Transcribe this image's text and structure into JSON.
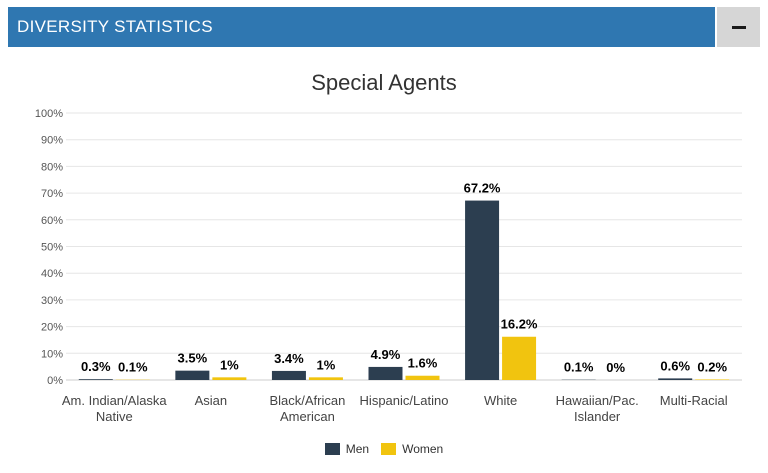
{
  "header": {
    "title": "DIVERSITY STATISTICS",
    "toggle_symbol": "minus-icon"
  },
  "colors": {
    "header_bg": "#2f77b1",
    "men": "#2c3e50",
    "women": "#f1c40f"
  },
  "chart_data": {
    "type": "bar",
    "title": "Special Agents",
    "xlabel": "",
    "ylabel": "",
    "ylim": [
      0,
      100
    ],
    "y_ticks": [
      "0%",
      "10%",
      "20%",
      "30%",
      "40%",
      "50%",
      "60%",
      "70%",
      "80%",
      "90%",
      "100%"
    ],
    "categories": [
      [
        "Am. Indian/Alaska",
        "Native"
      ],
      [
        "Asian"
      ],
      [
        "Black/African",
        "American"
      ],
      [
        "Hispanic/Latino"
      ],
      [
        "White"
      ],
      [
        "Hawaiian/Pac.",
        "Islander"
      ],
      [
        "Multi-Racial"
      ]
    ],
    "series": [
      {
        "name": "Men",
        "values": [
          0.3,
          3.5,
          3.4,
          4.9,
          67.2,
          0.1,
          0.6
        ],
        "labels": [
          "0.3%",
          "3.5%",
          "3.4%",
          "4.9%",
          "67.2%",
          "0.1%",
          "0.6%"
        ]
      },
      {
        "name": "Women",
        "values": [
          0.1,
          1,
          1,
          1.6,
          16.2,
          0,
          0.2
        ],
        "labels": [
          "0.1%",
          "1%",
          "1%",
          "1.6%",
          "16.2%",
          "0%",
          "0.2%"
        ]
      }
    ],
    "grid": true,
    "legend_position": "bottom-center"
  }
}
